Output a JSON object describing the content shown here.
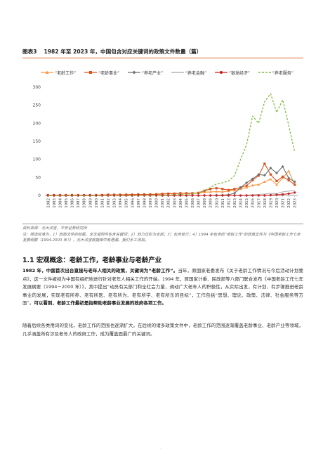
{
  "figure": {
    "number": "图表3",
    "title": "1982 年至 2023 年，中国包含对应关键词的政策文件数量（篇）"
  },
  "colors": {
    "accent": "#e26a2c",
    "series": [
      "#f59a48",
      "#d9531e",
      "#707070",
      "#b3b3b3",
      "#c81e1e",
      "#86bb46"
    ]
  },
  "chart_data": {
    "type": "line",
    "title": "",
    "xlabel": "",
    "ylabel": "",
    "ylim": [
      0,
      300
    ],
    "yticks": [
      0,
      50,
      100,
      150,
      200,
      250,
      300
    ],
    "grid": false,
    "legend": "top",
    "x": [
      "1982",
      "1983",
      "1984",
      "1985",
      "1986",
      "1987",
      "1988",
      "1989",
      "1990",
      "1991",
      "1992",
      "1993",
      "1994",
      "1995",
      "1996",
      "1997",
      "1998",
      "1999",
      "2000",
      "2001",
      "2002",
      "2003",
      "2004",
      "2005",
      "2006",
      "2007",
      "2008",
      "2009",
      "2010",
      "2011",
      "2012",
      "2013",
      "2014",
      "2015",
      "2016",
      "2017",
      "2018",
      "2019",
      "2020",
      "2021",
      "2022",
      "2023"
    ],
    "series": [
      {
        "name": "“老龄工作”",
        "style": "line-triangle",
        "values": [
          1,
          1,
          0,
          1,
          1,
          1,
          1,
          1,
          1,
          2,
          2,
          2,
          2,
          3,
          3,
          3,
          3,
          3,
          4,
          5,
          5,
          5,
          6,
          6,
          6,
          7,
          9,
          10,
          11,
          10,
          12,
          14,
          18,
          22,
          28,
          30,
          38,
          45,
          30,
          48,
          68,
          30
        ]
      },
      {
        "name": "“老龄事业”",
        "style": "line-square",
        "values": [
          1,
          1,
          1,
          1,
          1,
          1,
          1,
          1,
          1,
          1,
          2,
          2,
          2,
          2,
          2,
          3,
          3,
          3,
          3,
          4,
          5,
          5,
          6,
          6,
          6,
          7,
          13,
          18,
          20,
          18,
          15,
          18,
          22,
          27,
          42,
          55,
          88,
          58,
          40,
          52,
          42,
          30
        ]
      },
      {
        "name": "“养老产业”",
        "style": "line-diamond",
        "values": [
          0,
          0,
          0,
          0,
          0,
          0,
          0,
          0,
          0,
          0,
          0,
          0,
          0,
          0,
          0,
          0,
          0,
          0,
          0,
          0,
          0,
          0,
          0,
          0,
          0,
          0,
          0,
          0,
          1,
          1,
          2,
          6,
          22,
          35,
          46,
          58,
          56,
          76,
          62,
          80,
          48,
          38
        ]
      },
      {
        "name": "“养老金融”",
        "style": "line",
        "values": [
          0,
          0,
          0,
          0,
          0,
          0,
          0,
          0,
          0,
          0,
          0,
          0,
          0,
          0,
          0,
          0,
          0,
          0,
          0,
          0,
          0,
          0,
          0,
          0,
          0,
          0,
          0,
          0,
          0,
          0,
          0,
          0,
          1,
          1,
          2,
          3,
          4,
          6,
          5,
          10,
          12,
          14
        ]
      },
      {
        "name": "“银发经济”",
        "style": "line-circle",
        "values": [
          0,
          0,
          0,
          0,
          0,
          0,
          0,
          0,
          0,
          0,
          0,
          0,
          0,
          0,
          0,
          0,
          0,
          0,
          0,
          0,
          0,
          0,
          0,
          0,
          0,
          0,
          0,
          0,
          0,
          0,
          0,
          0,
          0,
          0,
          0,
          0,
          0,
          1,
          2,
          3,
          5,
          8
        ]
      },
      {
        "name": "“养老服务”",
        "style": "dashed",
        "values": [
          0,
          0,
          0,
          0,
          0,
          0,
          0,
          0,
          0,
          0,
          0,
          0,
          0,
          0,
          0,
          0,
          0,
          0,
          0,
          1,
          1,
          2,
          3,
          3,
          5,
          8,
          14,
          22,
          32,
          35,
          40,
          55,
          100,
          140,
          220,
          200,
          260,
          282,
          230,
          265,
          195,
          120
        ]
      }
    ]
  },
  "source": "资料来源：北大法宝，平安证券研究所",
  "note": "注：筛选标准为，1）政策文件的标题、全文或附件包含关键词；2）效力位阶为全部；3）包含修订；4）1994 年包含的“老龄工作”的政策文件为《中国老龄工作七年发展纲要（1994-2000 年）》，北大法宝数据库中有遗漏，我们手工添加。",
  "section": {
    "title": "1.1 宏观概念：老龄工作，老龄事业与老龄产业"
  },
  "paragraph1": {
    "lead": "1982 年，中国首次出台直接与老年人相关的政策，关键词为“老龄工作”。",
    "body": "当年，原国家老委发布《关于老龄工作情况与今后活动计划要点》，这一文件被视为中国有组织地进行针对老年人相关工作的开端。1994 年，原国家计委、民政部等八部门联合发布《中国老龄工作七年发展纲要（1994－2000 年）》，其中提出“动员有关部门和全社会力量，调动广大老年人的积极性，从实际出发，有计划、有步骤推进老龄事业的发展，实现老有所养、老有所医、老有所为、老有所学、老有所乐的目标”，工作包括“思想、理论、政策、法律、社会服务等方面”。",
    "tail": "可以看到，老龄工作最初是指帮助老龄事业发展的政府各项工作。"
  },
  "paragraph2": "随着后续各类用词的变化，老龄工作的范围也逐渐扩大。在后续的诸多政策文件中，老龄工作的范围逐渐覆盖老龄事业、老龄产业等领域，几乎涵盖所有涉及老年人的政府工作，成为覆盖面最广的关键词。",
  "page_marker": "-"
}
